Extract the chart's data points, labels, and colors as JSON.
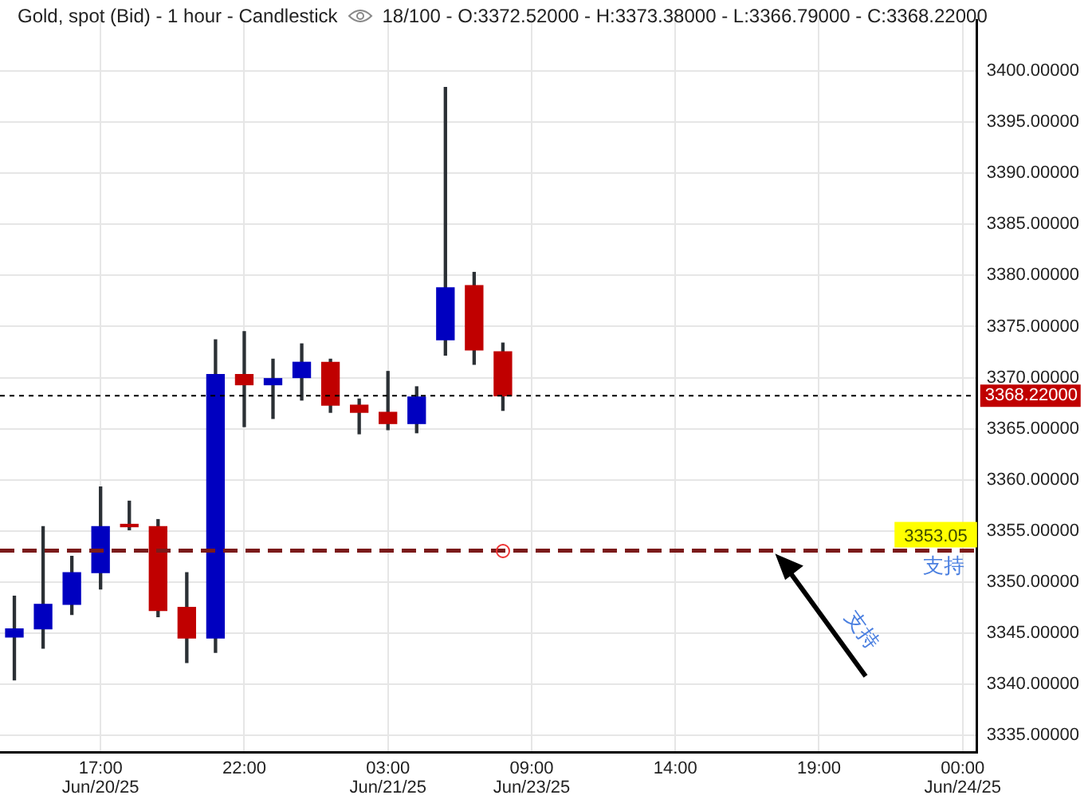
{
  "chart_data": {
    "type": "candlestick",
    "title": "Gold, spot (Bid) - 1 hour - Candlestick",
    "subtitle": "18/100 - O:3372.52000 - H:3373.38000 - L:3366.79000 - C:3368.22000",
    "categories": [
      null,
      null,
      null,
      "17:00\nJun/20/25",
      null,
      null,
      null,
      null,
      "22:00",
      null,
      null,
      null,
      null,
      "03:00\nJun/21/25",
      null,
      null,
      null,
      null,
      "09:00\nJun/23/25",
      null,
      null,
      null,
      null,
      "14:00",
      null,
      null,
      null,
      null,
      "19:00",
      null,
      null,
      null,
      null,
      "00:00\nJun/24/25"
    ],
    "ohlc": [
      [
        3344.6,
        3348.6,
        3340.4,
        3345.4
      ],
      [
        3345.4,
        3355.4,
        3343.5,
        3347.8
      ],
      [
        3347.8,
        3352.5,
        3346.8,
        3350.9
      ],
      [
        3350.9,
        3359.3,
        3349.3,
        3355.4
      ],
      [
        3355.6,
        3357.9,
        3355.1,
        3355.4
      ],
      [
        3355.4,
        3356.1,
        3346.6,
        3347.2
      ],
      [
        3347.5,
        3350.9,
        3342.1,
        3344.5
      ],
      [
        3344.5,
        3373.7,
        3343.1,
        3370.3
      ],
      [
        3370.3,
        3374.5,
        3365.2,
        3369.3
      ],
      [
        3369.3,
        3371.8,
        3366.0,
        3369.9
      ],
      [
        3370.0,
        3373.3,
        3367.8,
        3371.5
      ],
      [
        3371.5,
        3371.8,
        3366.6,
        3367.3
      ],
      [
        3367.3,
        3367.9,
        3364.5,
        3366.6
      ],
      [
        3366.6,
        3370.6,
        3364.9,
        3365.5
      ],
      [
        3365.5,
        3369.1,
        3364.6,
        3368.1
      ],
      [
        3373.7,
        3398.4,
        3372.2,
        3378.8
      ],
      [
        3379.0,
        3380.3,
        3371.3,
        3372.7
      ],
      [
        3372.52,
        3373.38,
        3366.79,
        3368.22
      ],
      null,
      null,
      null,
      null,
      null,
      null,
      null,
      null,
      null,
      null,
      null,
      null,
      null,
      null,
      null,
      null
    ],
    "colors": [
      "#0000c0",
      "#0000c0",
      "#0000c0",
      "#0000c0",
      "#c00000",
      "#c00000",
      "#c00000",
      "#0000c0",
      "#c00000",
      "#0000c0",
      "#0000c0",
      "#c00000",
      "#c00000",
      "#c00000",
      "#0000c0",
      "#0000c0",
      "#c00000",
      "#c00000",
      null,
      null,
      null,
      null,
      null,
      null,
      null,
      null,
      null,
      null,
      null,
      null,
      null,
      null,
      null,
      null
    ],
    "ylim": [
      3333.3,
      3405
    ],
    "yticks": [
      {
        "value": 3335,
        "label": "3335.00000"
      },
      {
        "value": 3340,
        "label": "3340.00000"
      },
      {
        "value": 3345,
        "label": "3345.00000"
      },
      {
        "value": 3350,
        "label": "3350.00000"
      },
      {
        "value": 3355,
        "label": "3355.00000"
      },
      {
        "value": 3360,
        "label": "3360.00000"
      },
      {
        "value": 3365,
        "label": "3365.00000"
      },
      {
        "value": 3370,
        "label": "3370.00000"
      },
      {
        "value": 3375,
        "label": "3375.00000"
      },
      {
        "value": 3380,
        "label": "3380.00000"
      },
      {
        "value": 3385,
        "label": "3385.00000"
      },
      {
        "value": 3390,
        "label": "3390.00000"
      },
      {
        "value": 3395,
        "label": "3395.00000"
      },
      {
        "value": 3400,
        "label": "3400.00000"
      }
    ],
    "ref_lines": [
      {
        "axis": "y",
        "value": 3368.22,
        "label": "3368.22000",
        "color": "#000000",
        "line_style": "dotted"
      },
      {
        "axis": "y",
        "value": 3353.05,
        "label": "3353.05",
        "color": "#7b1a1a",
        "line_style": "dashed"
      }
    ],
    "annotations": [
      "支持",
      "支持"
    ],
    "grid": true,
    "legend": false
  }
}
